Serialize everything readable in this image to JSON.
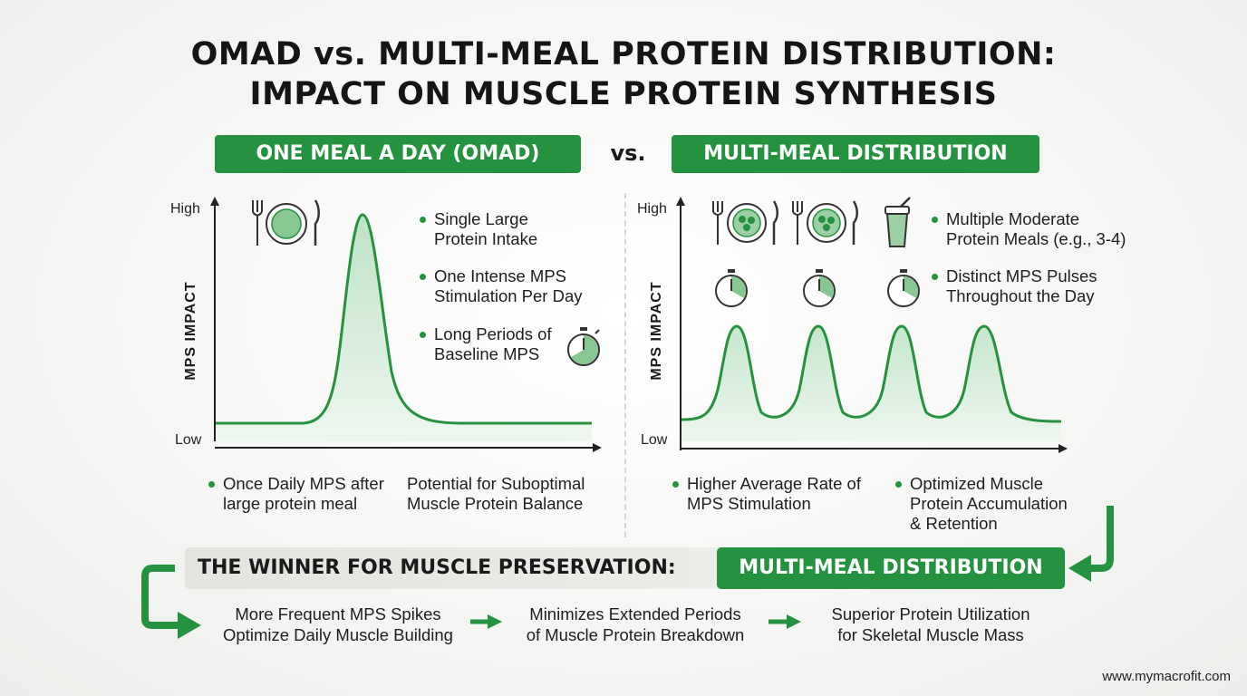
{
  "title": {
    "line1": "OMAD vs. MULTI-MEAL PROTEIN DISTRIBUTION:",
    "line2": "IMPACT ON MUSCLE PROTEIN SYNTHESIS"
  },
  "left_header": "ONE MEAL A DAY (OMAD)",
  "vs_label": "vs.",
  "right_header": "MULTI-MEAL DISTRIBUTION",
  "axis": {
    "high": "High",
    "low": "Low",
    "ylabel": "MPS IMPACT"
  },
  "left_bullets": [
    {
      "line1": "Single Large",
      "line2": "Protein Intake"
    },
    {
      "line1": "One Intense MPS",
      "line2": "Stimulation Per Day"
    },
    {
      "line1": "Long Periods of",
      "line2": "Baseline MPS"
    }
  ],
  "right_bullets": [
    {
      "line1": "Multiple Moderate",
      "line2": "Protein Meals (e.g., 3-4)"
    },
    {
      "line1": "Distinct MPS Pulses",
      "line2": "Throughout the Day"
    }
  ],
  "left_notes": [
    {
      "line1": "Once Daily MPS after",
      "line2": "large protein meal"
    },
    {
      "line1": "Potential for Suboptimal",
      "line2": "Muscle Protein Balance"
    }
  ],
  "right_notes": [
    {
      "line1": "Higher Average Rate of",
      "line2": "MPS Stimulation",
      "line3": ""
    },
    {
      "line1": "Optimized Muscle",
      "line2": "Protein Accumulation",
      "line3": "& Retention"
    }
  ],
  "winner": {
    "label": "THE WINNER FOR MUSCLE PRESERVATION:",
    "value": "MULTI-MEAL DISTRIBUTION"
  },
  "benefits": [
    {
      "line1": "More Frequent MPS Spikes",
      "line2": "Optimize Daily Muscle Building"
    },
    {
      "line1": "Minimizes Extended Periods",
      "line2": "of Muscle Protein Breakdown"
    },
    {
      "line1": "Superior Protein Utilization",
      "line2": "for Skeletal Muscle Mass"
    }
  ],
  "footer": "www.mymacrofit.com",
  "colors": {
    "accent": "#24923f",
    "fill": "#d9efdd",
    "dark": "#151515"
  },
  "icons": [
    "plate-icon",
    "fork-icon",
    "knife-icon",
    "stopwatch-icon",
    "protein-shake-icon",
    "arrow-right-icon"
  ]
}
